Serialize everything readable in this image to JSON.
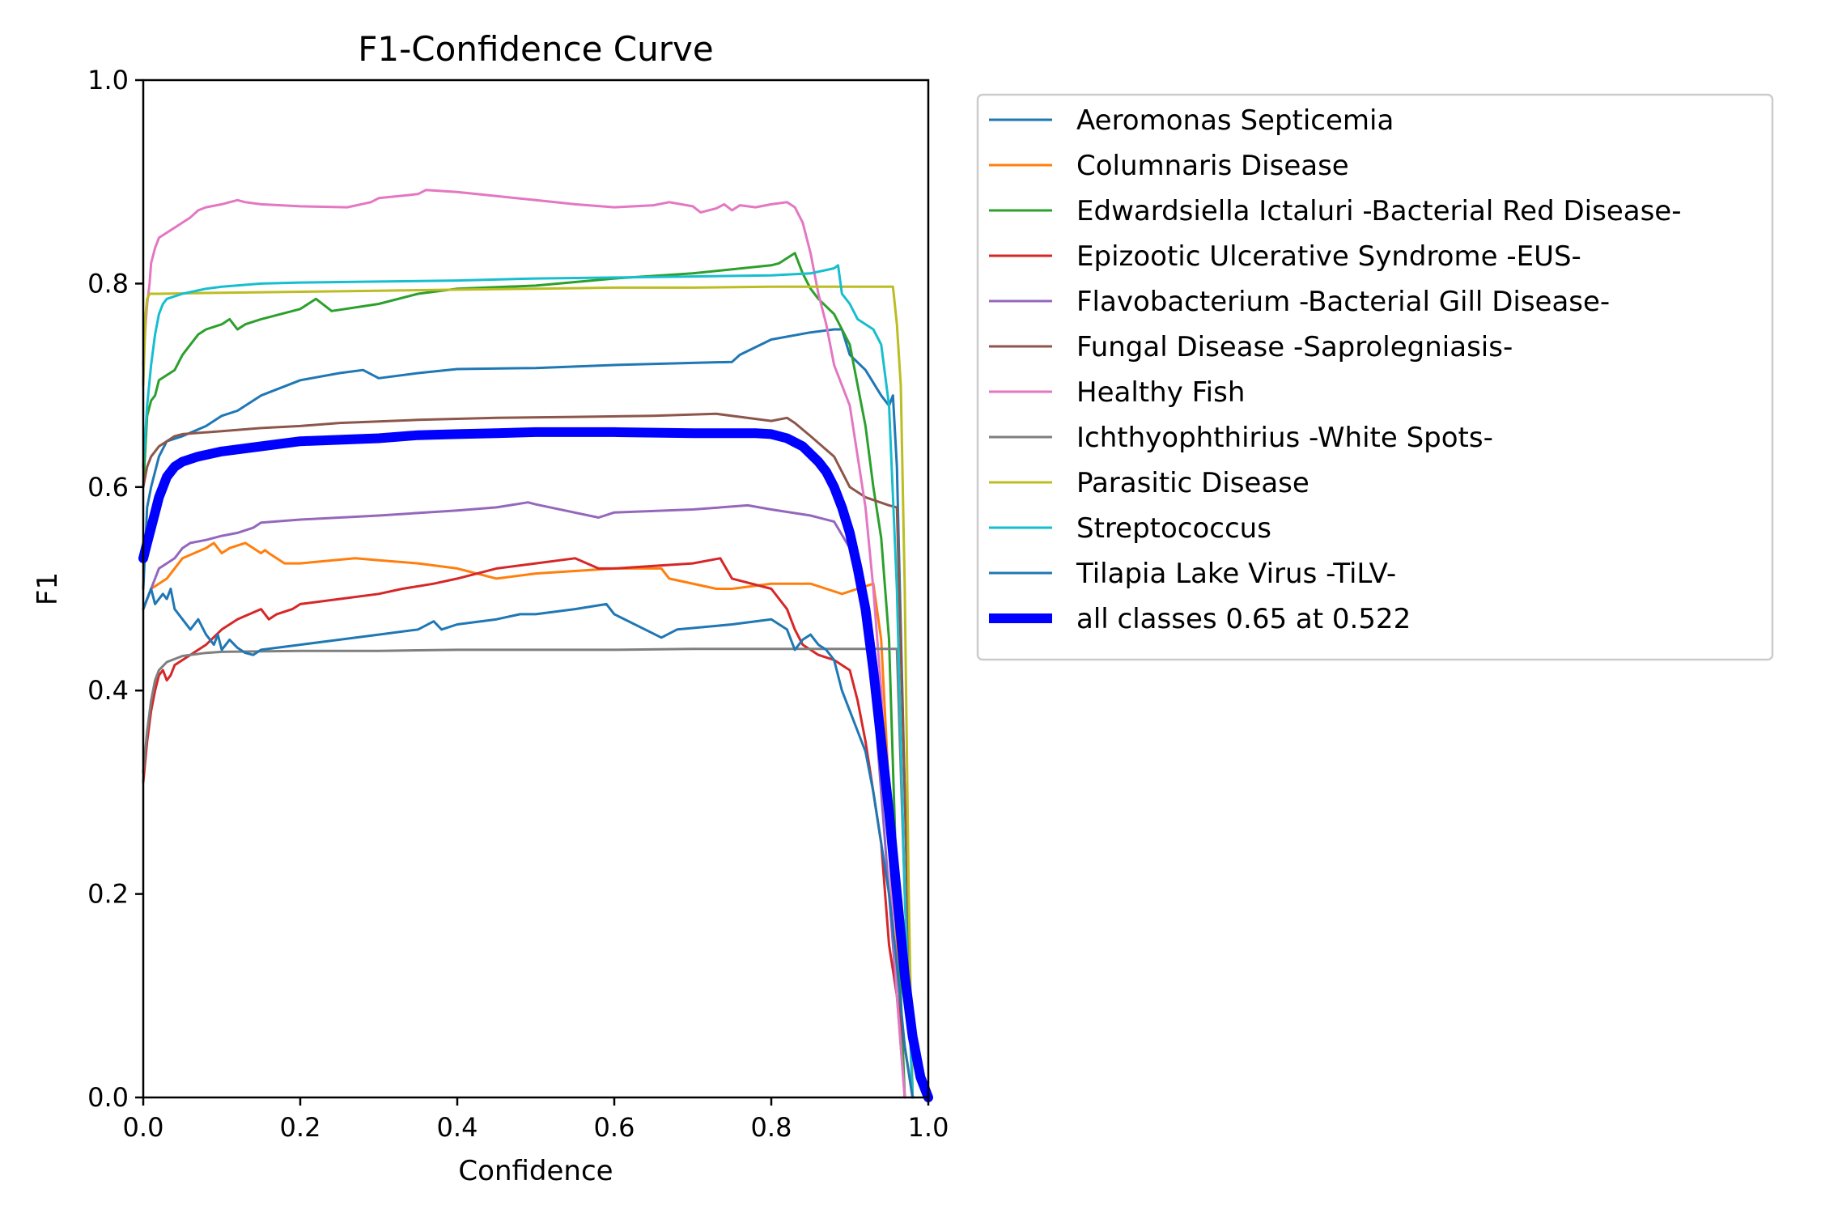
{
  "chart_data": {
    "type": "line",
    "title": "F1-Confidence Curve",
    "xlabel": "Confidence",
    "ylabel": "F1",
    "xlim": [
      0.0,
      1.0
    ],
    "ylim": [
      0.0,
      1.0
    ],
    "xticks": [
      "0.0",
      "0.2",
      "0.4",
      "0.6",
      "0.8",
      "1.0"
    ],
    "yticks": [
      "0.0",
      "0.2",
      "0.4",
      "0.6",
      "0.8",
      "1.0"
    ],
    "grid": false,
    "legend_position": "outside-right-top",
    "series": [
      {
        "name": "Aeromonas Septicemia",
        "color": "#1f77b4",
        "width": 2,
        "x": [
          0.0,
          0.005,
          0.01,
          0.02,
          0.03,
          0.05,
          0.08,
          0.1,
          0.12,
          0.15,
          0.2,
          0.25,
          0.28,
          0.3,
          0.35,
          0.4,
          0.5,
          0.6,
          0.7,
          0.75,
          0.76,
          0.8,
          0.85,
          0.88,
          0.89,
          0.9,
          0.92,
          0.94,
          0.95,
          0.955,
          0.96,
          0.97,
          0.98
        ],
        "y": [
          0.5,
          0.58,
          0.6,
          0.63,
          0.645,
          0.65,
          0.66,
          0.67,
          0.675,
          0.69,
          0.705,
          0.712,
          0.715,
          0.707,
          0.712,
          0.716,
          0.717,
          0.72,
          0.722,
          0.723,
          0.73,
          0.745,
          0.752,
          0.755,
          0.755,
          0.73,
          0.715,
          0.69,
          0.68,
          0.69,
          0.62,
          0.3,
          0.0
        ]
      },
      {
        "name": "Columnaris Disease",
        "color": "#ff7f0e",
        "width": 2,
        "x": [
          0.0,
          0.01,
          0.02,
          0.03,
          0.05,
          0.08,
          0.09,
          0.1,
          0.11,
          0.13,
          0.15,
          0.155,
          0.16,
          0.18,
          0.2,
          0.27,
          0.3,
          0.35,
          0.4,
          0.45,
          0.5,
          0.6,
          0.66,
          0.67,
          0.73,
          0.75,
          0.8,
          0.85,
          0.87,
          0.89,
          0.91,
          0.93,
          0.94,
          0.95,
          0.96,
          0.97
        ],
        "y": [
          0.48,
          0.5,
          0.505,
          0.51,
          0.53,
          0.54,
          0.545,
          0.535,
          0.54,
          0.545,
          0.535,
          0.538,
          0.535,
          0.525,
          0.525,
          0.53,
          0.528,
          0.525,
          0.52,
          0.51,
          0.515,
          0.52,
          0.52,
          0.51,
          0.5,
          0.5,
          0.505,
          0.505,
          0.5,
          0.495,
          0.5,
          0.505,
          0.45,
          0.3,
          0.15,
          0.0
        ]
      },
      {
        "name": "Edwardsiella Ictaluri -Bacterial Red Disease-",
        "color": "#2ca02c",
        "width": 2,
        "x": [
          0.0,
          0.005,
          0.01,
          0.015,
          0.02,
          0.03,
          0.04,
          0.05,
          0.06,
          0.07,
          0.08,
          0.1,
          0.11,
          0.12,
          0.13,
          0.15,
          0.2,
          0.22,
          0.24,
          0.3,
          0.35,
          0.4,
          0.5,
          0.6,
          0.7,
          0.8,
          0.81,
          0.82,
          0.83,
          0.84,
          0.85,
          0.86,
          0.88,
          0.9,
          0.91,
          0.92,
          0.93,
          0.94,
          0.95,
          0.96,
          0.97
        ],
        "y": [
          0.6,
          0.67,
          0.685,
          0.69,
          0.705,
          0.71,
          0.715,
          0.73,
          0.74,
          0.75,
          0.755,
          0.76,
          0.765,
          0.755,
          0.76,
          0.765,
          0.775,
          0.785,
          0.773,
          0.78,
          0.79,
          0.795,
          0.798,
          0.805,
          0.81,
          0.818,
          0.82,
          0.825,
          0.83,
          0.81,
          0.795,
          0.785,
          0.77,
          0.74,
          0.7,
          0.66,
          0.6,
          0.55,
          0.45,
          0.2,
          0.0
        ]
      },
      {
        "name": "Epizootic Ulcerative Syndrome -EUS-",
        "color": "#d62728",
        "width": 2,
        "x": [
          0.0,
          0.005,
          0.01,
          0.015,
          0.02,
          0.025,
          0.03,
          0.035,
          0.04,
          0.05,
          0.06,
          0.07,
          0.08,
          0.1,
          0.12,
          0.15,
          0.16,
          0.17,
          0.19,
          0.2,
          0.25,
          0.3,
          0.33,
          0.37,
          0.4,
          0.45,
          0.5,
          0.55,
          0.58,
          0.6,
          0.7,
          0.735,
          0.75,
          0.8,
          0.82,
          0.83,
          0.84,
          0.85,
          0.86,
          0.88,
          0.9,
          0.91,
          0.92,
          0.93,
          0.94,
          0.95,
          0.96,
          0.97,
          0.98
        ],
        "y": [
          0.31,
          0.35,
          0.38,
          0.4,
          0.415,
          0.42,
          0.41,
          0.415,
          0.425,
          0.43,
          0.435,
          0.44,
          0.445,
          0.46,
          0.47,
          0.48,
          0.47,
          0.475,
          0.48,
          0.485,
          0.49,
          0.495,
          0.5,
          0.505,
          0.51,
          0.52,
          0.525,
          0.53,
          0.52,
          0.52,
          0.525,
          0.53,
          0.51,
          0.5,
          0.48,
          0.46,
          0.445,
          0.44,
          0.435,
          0.43,
          0.42,
          0.39,
          0.35,
          0.3,
          0.25,
          0.15,
          0.1,
          0.05,
          0.0
        ]
      },
      {
        "name": "Flavobacterium -Bacterial Gill Disease-",
        "color": "#9467bd",
        "width": 2,
        "x": [
          0.0,
          0.01,
          0.02,
          0.03,
          0.04,
          0.05,
          0.06,
          0.08,
          0.1,
          0.12,
          0.14,
          0.15,
          0.2,
          0.3,
          0.4,
          0.45,
          0.49,
          0.5,
          0.58,
          0.6,
          0.7,
          0.77,
          0.8,
          0.85,
          0.88,
          0.9,
          0.92,
          0.93,
          0.94,
          0.95,
          0.96,
          0.97
        ],
        "y": [
          0.48,
          0.5,
          0.52,
          0.525,
          0.53,
          0.54,
          0.545,
          0.548,
          0.552,
          0.555,
          0.56,
          0.565,
          0.568,
          0.572,
          0.577,
          0.58,
          0.585,
          0.583,
          0.57,
          0.575,
          0.578,
          0.582,
          0.578,
          0.572,
          0.566,
          0.54,
          0.48,
          0.4,
          0.3,
          0.2,
          0.1,
          0.0
        ]
      },
      {
        "name": "Fungal Disease -Saprolegniasis-",
        "color": "#8c564b",
        "width": 2,
        "x": [
          0.0,
          0.005,
          0.01,
          0.015,
          0.02,
          0.03,
          0.04,
          0.05,
          0.1,
          0.15,
          0.2,
          0.25,
          0.35,
          0.45,
          0.55,
          0.65,
          0.73,
          0.8,
          0.82,
          0.83,
          0.85,
          0.88,
          0.9,
          0.92,
          0.95,
          0.96,
          0.97,
          0.98
        ],
        "y": [
          0.6,
          0.62,
          0.63,
          0.635,
          0.64,
          0.645,
          0.65,
          0.652,
          0.655,
          0.658,
          0.66,
          0.663,
          0.666,
          0.668,
          0.669,
          0.67,
          0.672,
          0.665,
          0.668,
          0.663,
          0.65,
          0.63,
          0.6,
          0.59,
          0.582,
          0.58,
          0.3,
          0.0
        ]
      },
      {
        "name": "Healthy Fish",
        "color": "#e377c2",
        "width": 2,
        "x": [
          0.0,
          0.003,
          0.005,
          0.008,
          0.01,
          0.015,
          0.02,
          0.03,
          0.04,
          0.05,
          0.06,
          0.07,
          0.08,
          0.1,
          0.11,
          0.12,
          0.13,
          0.15,
          0.2,
          0.26,
          0.29,
          0.3,
          0.35,
          0.36,
          0.4,
          0.45,
          0.5,
          0.55,
          0.6,
          0.65,
          0.67,
          0.7,
          0.71,
          0.73,
          0.74,
          0.75,
          0.76,
          0.78,
          0.8,
          0.82,
          0.83,
          0.84,
          0.85,
          0.86,
          0.87,
          0.88,
          0.9,
          0.91,
          0.92,
          0.93,
          0.94,
          0.95,
          0.96,
          0.97
        ],
        "y": [
          0.72,
          0.76,
          0.78,
          0.8,
          0.82,
          0.835,
          0.845,
          0.85,
          0.855,
          0.86,
          0.865,
          0.872,
          0.875,
          0.878,
          0.88,
          0.882,
          0.88,
          0.878,
          0.876,
          0.875,
          0.88,
          0.884,
          0.888,
          0.892,
          0.89,
          0.886,
          0.882,
          0.878,
          0.875,
          0.877,
          0.88,
          0.876,
          0.87,
          0.874,
          0.878,
          0.872,
          0.877,
          0.875,
          0.878,
          0.88,
          0.875,
          0.86,
          0.83,
          0.79,
          0.76,
          0.72,
          0.68,
          0.63,
          0.58,
          0.5,
          0.4,
          0.25,
          0.1,
          0.0
        ]
      },
      {
        "name": "Ichthyophthirius -White Spots-",
        "color": "#7f7f7f",
        "width": 2,
        "x": [
          0.0,
          0.005,
          0.01,
          0.015,
          0.02,
          0.03,
          0.05,
          0.08,
          0.1,
          0.2,
          0.3,
          0.4,
          0.5,
          0.6,
          0.7,
          0.8,
          0.9,
          0.96,
          0.97,
          0.98
        ],
        "y": [
          0.32,
          0.36,
          0.39,
          0.41,
          0.42,
          0.428,
          0.434,
          0.437,
          0.438,
          0.439,
          0.439,
          0.44,
          0.44,
          0.44,
          0.441,
          0.441,
          0.441,
          0.441,
          0.2,
          0.0
        ]
      },
      {
        "name": "Parasitic Disease",
        "color": "#bcbd22",
        "width": 2,
        "x": [
          0.0,
          0.003,
          0.005,
          0.008,
          0.01,
          0.02,
          0.1,
          0.2,
          0.3,
          0.4,
          0.5,
          0.6,
          0.7,
          0.8,
          0.9,
          0.955,
          0.96,
          0.965,
          0.97,
          0.975,
          0.98
        ],
        "y": [
          0.7,
          0.77,
          0.785,
          0.79,
          0.79,
          0.79,
          0.791,
          0.792,
          0.793,
          0.794,
          0.795,
          0.796,
          0.796,
          0.797,
          0.797,
          0.797,
          0.76,
          0.7,
          0.5,
          0.2,
          0.0
        ]
      },
      {
        "name": "Streptococcus",
        "color": "#17becf",
        "width": 2,
        "x": [
          0.0,
          0.005,
          0.01,
          0.015,
          0.02,
          0.025,
          0.03,
          0.05,
          0.08,
          0.1,
          0.15,
          0.2,
          0.3,
          0.4,
          0.5,
          0.6,
          0.7,
          0.8,
          0.85,
          0.88,
          0.885,
          0.89,
          0.9,
          0.91,
          0.93,
          0.94,
          0.95,
          0.96,
          0.97,
          0.98
        ],
        "y": [
          0.62,
          0.68,
          0.72,
          0.75,
          0.77,
          0.78,
          0.785,
          0.79,
          0.795,
          0.797,
          0.8,
          0.801,
          0.802,
          0.803,
          0.805,
          0.806,
          0.807,
          0.808,
          0.81,
          0.815,
          0.818,
          0.79,
          0.78,
          0.765,
          0.755,
          0.74,
          0.68,
          0.5,
          0.2,
          0.0
        ]
      },
      {
        "name": "Tilapia Lake Virus -TiLV-",
        "color": "#1f77b4",
        "width": 2,
        "x": [
          0.0,
          0.005,
          0.01,
          0.015,
          0.02,
          0.025,
          0.03,
          0.035,
          0.04,
          0.05,
          0.06,
          0.07,
          0.08,
          0.09,
          0.095,
          0.1,
          0.11,
          0.12,
          0.13,
          0.14,
          0.15,
          0.2,
          0.25,
          0.3,
          0.35,
          0.37,
          0.38,
          0.4,
          0.45,
          0.48,
          0.5,
          0.55,
          0.59,
          0.6,
          0.66,
          0.68,
          0.75,
          0.8,
          0.82,
          0.83,
          0.84,
          0.85,
          0.86,
          0.87,
          0.88,
          0.89,
          0.9,
          0.91,
          0.92,
          0.93,
          0.94,
          0.95,
          0.96,
          0.97,
          0.98
        ],
        "y": [
          0.48,
          0.49,
          0.5,
          0.485,
          0.49,
          0.495,
          0.49,
          0.5,
          0.48,
          0.47,
          0.46,
          0.47,
          0.455,
          0.445,
          0.455,
          0.44,
          0.45,
          0.442,
          0.437,
          0.435,
          0.44,
          0.445,
          0.45,
          0.455,
          0.46,
          0.468,
          0.46,
          0.465,
          0.47,
          0.475,
          0.475,
          0.48,
          0.485,
          0.475,
          0.452,
          0.46,
          0.465,
          0.47,
          0.46,
          0.44,
          0.45,
          0.455,
          0.445,
          0.44,
          0.43,
          0.4,
          0.38,
          0.36,
          0.34,
          0.3,
          0.25,
          0.2,
          0.13,
          0.05,
          0.0
        ]
      },
      {
        "name": "all classes 0.65 at 0.522",
        "color": "#0000ff",
        "width": 8,
        "x": [
          0.0,
          0.005,
          0.01,
          0.015,
          0.02,
          0.025,
          0.03,
          0.04,
          0.05,
          0.07,
          0.1,
          0.15,
          0.2,
          0.3,
          0.35,
          0.4,
          0.45,
          0.5,
          0.522,
          0.6,
          0.7,
          0.78,
          0.8,
          0.82,
          0.84,
          0.86,
          0.87,
          0.88,
          0.89,
          0.9,
          0.91,
          0.92,
          0.93,
          0.94,
          0.95,
          0.96,
          0.97,
          0.98,
          0.99,
          1.0
        ],
        "y": [
          0.53,
          0.545,
          0.56,
          0.575,
          0.59,
          0.6,
          0.61,
          0.62,
          0.625,
          0.63,
          0.635,
          0.64,
          0.645,
          0.648,
          0.651,
          0.652,
          0.653,
          0.654,
          0.654,
          0.654,
          0.653,
          0.653,
          0.652,
          0.648,
          0.64,
          0.625,
          0.615,
          0.6,
          0.58,
          0.555,
          0.52,
          0.48,
          0.42,
          0.35,
          0.28,
          0.2,
          0.12,
          0.06,
          0.02,
          0.0
        ]
      }
    ]
  }
}
